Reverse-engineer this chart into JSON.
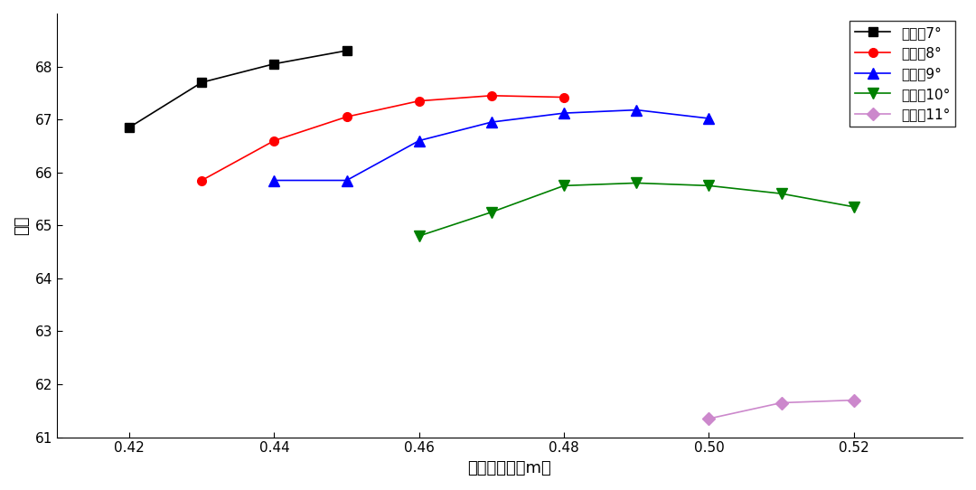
{
  "series": [
    {
      "label": "桨距角7°",
      "color": "black",
      "marker": "s",
      "markersize": 7,
      "x": [
        0.42,
        0.43,
        0.44,
        0.45
      ],
      "y": [
        66.85,
        67.7,
        68.05,
        68.3
      ]
    },
    {
      "label": "桨距角8°",
      "color": "red",
      "marker": "o",
      "markersize": 7,
      "x": [
        0.43,
        0.44,
        0.45,
        0.46,
        0.47,
        0.48
      ],
      "y": [
        65.85,
        66.6,
        67.05,
        67.35,
        67.45,
        67.42
      ]
    },
    {
      "label": "桨距角9°",
      "color": "blue",
      "marker": "^",
      "markersize": 8,
      "x": [
        0.44,
        0.45,
        0.46,
        0.47,
        0.48,
        0.49,
        0.5
      ],
      "y": [
        65.85,
        65.85,
        66.6,
        66.95,
        67.12,
        67.18,
        67.02
      ]
    },
    {
      "label": "桨距角10°",
      "color": "green",
      "marker": "v",
      "markersize": 8,
      "x": [
        0.46,
        0.47,
        0.48,
        0.49,
        0.5,
        0.51,
        0.52
      ],
      "y": [
        64.8,
        65.25,
        65.75,
        65.8,
        65.75,
        65.6,
        65.35
      ]
    },
    {
      "label": "桨距角11°",
      "color": "#cc88cc",
      "marker": "D",
      "markersize": 7,
      "x": [
        0.5,
        0.51,
        0.52
      ],
      "y": [
        61.35,
        61.65,
        61.7
      ]
    }
  ],
  "xlabel": "螺旋桨直径（m）",
  "ylabel": "评分",
  "xlim": [
    0.41,
    0.535
  ],
  "ylim": [
    61,
    69
  ],
  "xticks": [
    0.42,
    0.44,
    0.46,
    0.48,
    0.5,
    0.52
  ],
  "yticks": [
    61,
    62,
    63,
    64,
    65,
    66,
    67,
    68
  ],
  "legend_loc": "upper right"
}
